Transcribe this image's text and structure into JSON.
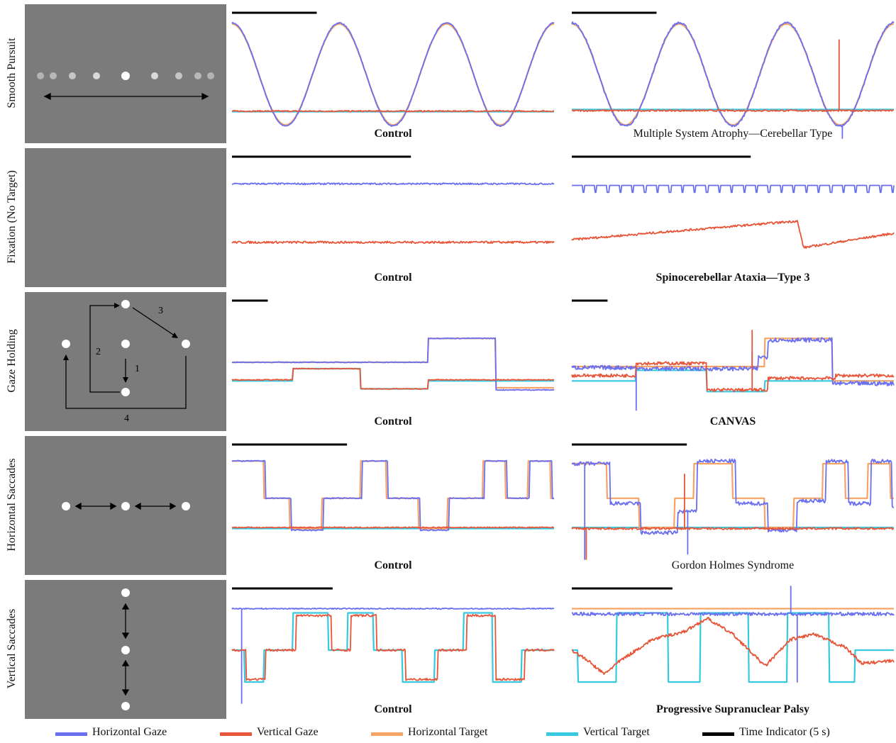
{
  "colors": {
    "horizontal_gaze": "#6a6ff0",
    "vertical_gaze": "#e8563a",
    "horizontal_target": "#f5a466",
    "vertical_target": "#36c9e0",
    "time_indicator": "#000000",
    "panel_bg": "#7b7b7b"
  },
  "rows": [
    {
      "label": "Smooth Pursuit",
      "control_caption": "Control",
      "patient_caption": "Multiple System Atrophy—Cerebellar Type",
      "schematic_labels": []
    },
    {
      "label": "Fixation (No Target)",
      "control_caption": "Control",
      "patient_caption": "Spinocerebellar Ataxia—Type 3",
      "schematic_labels": []
    },
    {
      "label": "Gaze Holding",
      "control_caption": "Control",
      "patient_caption": "CANVAS",
      "schematic_labels": [
        "1",
        "2",
        "3",
        "4"
      ]
    },
    {
      "label": "Horizontal Saccades",
      "control_caption": "Control",
      "patient_caption": "Gordon Holmes Syndrome",
      "schematic_labels": []
    },
    {
      "label": "Vertical Saccades",
      "control_caption": "Control",
      "patient_caption": "Progressive Supranuclear Palsy",
      "schematic_labels": []
    }
  ],
  "legend": [
    {
      "label": "Horizontal Gaze",
      "color_key": "horizontal_gaze"
    },
    {
      "label": "Vertical Gaze",
      "color_key": "vertical_gaze"
    },
    {
      "label": "Horizontal Target",
      "color_key": "horizontal_target"
    },
    {
      "label": "Vertical Target",
      "color_key": "vertical_target"
    },
    {
      "label": "Time Indicator (5 s)",
      "color_key": "time_indicator"
    }
  ],
  "chart_data": [
    {
      "type": "line",
      "row": "Smooth Pursuit",
      "subject": "Control",
      "time_indicator_s": 5,
      "time_span_s": 19,
      "y_range": [
        -1,
        1
      ],
      "series": [
        {
          "name": "Horizontal Target",
          "kind": "sine",
          "cycles": 3,
          "amplitude": 0.95,
          "baseline": 0
        },
        {
          "name": "Horizontal Gaze",
          "kind": "sine",
          "cycles": 3,
          "amplitude": 0.97,
          "baseline": 0,
          "noise": 0.01
        },
        {
          "name": "Vertical Target",
          "kind": "constant",
          "baseline": -0.7
        },
        {
          "name": "Vertical Gaze",
          "kind": "constant",
          "baseline": -0.69,
          "noise": 0.012
        }
      ]
    },
    {
      "type": "line",
      "row": "Smooth Pursuit",
      "subject": "Multiple System Atrophy—Cerebellar Type",
      "time_indicator_s": 5,
      "time_span_s": 19,
      "y_range": [
        -1,
        1
      ],
      "series": [
        {
          "name": "Horizontal Target",
          "kind": "sine",
          "cycles": 3,
          "amplitude": 0.95,
          "baseline": 0
        },
        {
          "name": "Horizontal Gaze",
          "kind": "sine",
          "cycles": 3,
          "amplitude": 0.97,
          "baseline": 0,
          "noise": 0.02,
          "spikes": [
            [
              0.84,
              -1.2
            ]
          ]
        },
        {
          "name": "Vertical Target",
          "kind": "constant",
          "baseline": -0.66
        },
        {
          "name": "Vertical Gaze",
          "kind": "constant",
          "baseline": -0.68,
          "noise": 0.015,
          "spikes": [
            [
              0.83,
              0.65
            ]
          ]
        }
      ]
    },
    {
      "type": "line",
      "row": "Fixation (No Target)",
      "subject": "Control",
      "time_indicator_s": 5,
      "time_span_s": 9,
      "y_range": [
        -1,
        1
      ],
      "series": [
        {
          "name": "Horizontal Gaze",
          "kind": "constant",
          "baseline": 0.65,
          "noise": 0.015
        },
        {
          "name": "Vertical Gaze",
          "kind": "constant",
          "baseline": -0.45,
          "noise": 0.02
        }
      ]
    },
    {
      "type": "line",
      "row": "Fixation (No Target)",
      "subject": "Spinocerebellar Ataxia—Type 3",
      "time_indicator_s": 5,
      "time_span_s": 9,
      "y_range": [
        -1,
        1
      ],
      "series": [
        {
          "name": "Horizontal Gaze",
          "kind": "sawtooth",
          "baseline": 0.62,
          "teeth": 26,
          "depth": 0.13
        },
        {
          "name": "Vertical Gaze",
          "kind": "drift",
          "points": [
            [
              0,
              -0.4
            ],
            [
              0.7,
              -0.05
            ],
            [
              0.72,
              -0.55
            ],
            [
              1,
              -0.28
            ]
          ],
          "noise": 0.02
        }
      ]
    },
    {
      "type": "line",
      "row": "Gaze Holding",
      "subject": "Control",
      "time_indicator_s": 5,
      "time_span_s": 45,
      "y_range": [
        -1,
        1
      ],
      "series": [
        {
          "name": "Horizontal Target",
          "kind": "steps",
          "steps": [
            [
              0,
              0
            ],
            [
              0.61,
              0.45
            ],
            [
              0.82,
              -0.48
            ]
          ]
        },
        {
          "name": "Horizontal Gaze",
          "kind": "steps",
          "steps": [
            [
              0,
              0
            ],
            [
              0.61,
              0.45
            ],
            [
              0.82,
              -0.52
            ]
          ],
          "noise": 0.008
        },
        {
          "name": "Vertical Target",
          "kind": "steps",
          "steps": [
            [
              0,
              -0.35
            ],
            [
              0.19,
              -0.12
            ],
            [
              0.4,
              -0.5
            ],
            [
              0.61,
              -0.35
            ]
          ]
        },
        {
          "name": "Vertical Gaze",
          "kind": "steps",
          "steps": [
            [
              0,
              -0.33
            ],
            [
              0.19,
              -0.12
            ],
            [
              0.4,
              -0.5
            ],
            [
              0.61,
              -0.33
            ]
          ],
          "noise": 0.008
        }
      ]
    },
    {
      "type": "line",
      "row": "Gaze Holding",
      "subject": "CANVAS",
      "time_indicator_s": 5,
      "time_span_s": 45,
      "y_range": [
        -1,
        1
      ],
      "series": [
        {
          "name": "Horizontal Target",
          "kind": "steps",
          "steps": [
            [
              0,
              -0.08
            ],
            [
              0.6,
              0.45
            ],
            [
              0.81,
              -0.35
            ]
          ]
        },
        {
          "name": "Horizontal Gaze",
          "kind": "steps",
          "steps": [
            [
              0,
              -0.1
            ],
            [
              0.2,
              -0.12
            ],
            [
              0.58,
              0.1
            ],
            [
              0.61,
              0.42
            ],
            [
              0.81,
              -0.4
            ]
          ],
          "noise": 0.04,
          "spikes": [
            [
              0.2,
              -0.9
            ],
            [
              0.56,
              0.2
            ]
          ]
        },
        {
          "name": "Vertical Target",
          "kind": "steps",
          "steps": [
            [
              0,
              -0.35
            ],
            [
              0.2,
              -0.15
            ],
            [
              0.42,
              -0.55
            ],
            [
              0.6,
              -0.35
            ]
          ]
        },
        {
          "name": "Vertical Gaze",
          "kind": "steps",
          "steps": [
            [
              0,
              -0.25
            ],
            [
              0.2,
              -0.02
            ],
            [
              0.42,
              -0.52
            ],
            [
              0.61,
              -0.3
            ],
            [
              0.82,
              -0.25
            ]
          ],
          "noise": 0.03,
          "spikes": [
            [
              0.56,
              0.6
            ]
          ]
        }
      ]
    },
    {
      "type": "line",
      "row": "Horizontal Saccades",
      "subject": "Control",
      "time_indicator_s": 5,
      "time_span_s": 14,
      "y_range": [
        -1,
        1
      ],
      "series": [
        {
          "name": "Horizontal Target",
          "kind": "steps",
          "steps": [
            [
              0,
              0.85
            ],
            [
              0.04,
              0.85
            ],
            [
              0.1,
              0.15
            ],
            [
              0.18,
              -0.42
            ],
            [
              0.28,
              0.15
            ],
            [
              0.4,
              0.85
            ],
            [
              0.48,
              0.15
            ],
            [
              0.58,
              -0.42
            ],
            [
              0.67,
              0.15
            ],
            [
              0.78,
              0.85
            ],
            [
              0.85,
              0.15
            ],
            [
              0.92,
              0.85
            ],
            [
              0.99,
              0.15
            ]
          ]
        },
        {
          "name": "Horizontal Gaze",
          "kind": "steps",
          "steps": [
            [
              0,
              0.85
            ],
            [
              0.045,
              0.85
            ],
            [
              0.105,
              0.15
            ],
            [
              0.185,
              -0.45
            ],
            [
              0.285,
              0.15
            ],
            [
              0.405,
              0.85
            ],
            [
              0.485,
              0.15
            ],
            [
              0.585,
              -0.45
            ],
            [
              0.675,
              0.15
            ],
            [
              0.785,
              0.85
            ],
            [
              0.855,
              0.15
            ],
            [
              0.925,
              0.85
            ],
            [
              0.995,
              0.15
            ]
          ],
          "noise": 0.01
        },
        {
          "name": "Vertical Target",
          "kind": "constant",
          "baseline": -0.42
        },
        {
          "name": "Vertical Gaze",
          "kind": "constant",
          "baseline": -0.4,
          "noise": 0.01
        }
      ]
    },
    {
      "type": "line",
      "row": "Horizontal Saccades",
      "subject": "Gordon Holmes Syndrome",
      "time_indicator_s": 5,
      "time_span_s": 14,
      "y_range": [
        -1,
        1
      ],
      "series": [
        {
          "name": "Horizontal Target",
          "kind": "steps",
          "steps": [
            [
              0,
              0.8
            ],
            [
              0.04,
              0.8
            ],
            [
              0.11,
              0.15
            ],
            [
              0.21,
              -0.4
            ],
            [
              0.32,
              0.15
            ],
            [
              0.38,
              0.8
            ],
            [
              0.5,
              0.15
            ],
            [
              0.6,
              -0.4
            ],
            [
              0.69,
              0.15
            ],
            [
              0.78,
              0.8
            ],
            [
              0.85,
              0.15
            ],
            [
              0.92,
              0.8
            ],
            [
              0.99,
              0.15
            ]
          ]
        },
        {
          "name": "Horizontal Gaze",
          "kind": "steps",
          "steps": [
            [
              0,
              0.8
            ],
            [
              0.045,
              0.8
            ],
            [
              0.12,
              0.05
            ],
            [
              0.215,
              -0.5
            ],
            [
              0.33,
              -0.1
            ],
            [
              0.39,
              0.85
            ],
            [
              0.51,
              0.05
            ],
            [
              0.61,
              -0.45
            ],
            [
              0.7,
              0.1
            ],
            [
              0.79,
              0.85
            ],
            [
              0.86,
              0.05
            ],
            [
              0.93,
              0.85
            ],
            [
              0.995,
              0.0
            ]
          ],
          "noise": 0.035,
          "spikes": [
            [
              0.04,
              -1.0
            ],
            [
              0.36,
              -0.9
            ]
          ]
        },
        {
          "name": "Vertical Target",
          "kind": "constant",
          "baseline": -0.4
        },
        {
          "name": "Vertical Gaze",
          "kind": "constant",
          "baseline": -0.42,
          "noise": 0.02,
          "spikes": [
            [
              0.045,
              -1.0
            ],
            [
              0.35,
              0.6
            ]
          ]
        }
      ]
    },
    {
      "type": "line",
      "row": "Vertical Saccades",
      "subject": "Control",
      "time_indicator_s": 5,
      "time_span_s": 16,
      "y_range": [
        -1,
        1
      ],
      "series": [
        {
          "name": "Horizontal Gaze",
          "kind": "constant",
          "baseline": 0.78,
          "noise": 0.01,
          "spikes": [
            [
              0.03,
              -1.0
            ]
          ]
        },
        {
          "name": "Vertical Target",
          "kind": "steps",
          "steps": [
            [
              0,
              0.0
            ],
            [
              0.04,
              -0.6
            ],
            [
              0.1,
              0.0
            ],
            [
              0.19,
              0.7
            ],
            [
              0.3,
              0.0
            ],
            [
              0.36,
              0.7
            ],
            [
              0.44,
              0.0
            ],
            [
              0.53,
              -0.6
            ],
            [
              0.63,
              0.0
            ],
            [
              0.72,
              0.7
            ],
            [
              0.81,
              -0.6
            ],
            [
              0.9,
              0.0
            ]
          ]
        },
        {
          "name": "Vertical Gaze",
          "kind": "steps",
          "steps": [
            [
              0,
              0.0
            ],
            [
              0.045,
              -0.55
            ],
            [
              0.105,
              0.0
            ],
            [
              0.2,
              0.65
            ],
            [
              0.31,
              0.0
            ],
            [
              0.37,
              0.65
            ],
            [
              0.45,
              0.0
            ],
            [
              0.54,
              -0.55
            ],
            [
              0.64,
              0.0
            ],
            [
              0.73,
              0.65
            ],
            [
              0.82,
              -0.55
            ],
            [
              0.91,
              0.0
            ]
          ],
          "noise": 0.02
        }
      ]
    },
    {
      "type": "line",
      "row": "Vertical Saccades",
      "subject": "Progressive Supranuclear Palsy",
      "time_indicator_s": 5,
      "time_span_s": 16,
      "y_range": [
        -1,
        1
      ],
      "series": [
        {
          "name": "Horizontal Target",
          "kind": "constant",
          "baseline": 0.78
        },
        {
          "name": "Horizontal Gaze",
          "kind": "constant",
          "baseline": 0.68,
          "noise": 0.03,
          "spikes": [
            [
              0.68,
              1.2
            ],
            [
              0.7,
              -0.6
            ]
          ]
        },
        {
          "name": "Vertical Target",
          "kind": "steps",
          "steps": [
            [
              0,
              0.0
            ],
            [
              0.02,
              -0.6
            ],
            [
              0.14,
              0.7
            ],
            [
              0.3,
              -0.6
            ],
            [
              0.4,
              0.7
            ],
            [
              0.55,
              -0.6
            ],
            [
              0.67,
              0.7
            ],
            [
              0.8,
              -0.6
            ],
            [
              0.88,
              0.0
            ]
          ]
        },
        {
          "name": "Vertical Gaze",
          "kind": "drift",
          "points": [
            [
              0,
              0.0
            ],
            [
              0.05,
              -0.2
            ],
            [
              0.1,
              -0.45
            ],
            [
              0.15,
              -0.2
            ],
            [
              0.25,
              0.2
            ],
            [
              0.35,
              0.35
            ],
            [
              0.42,
              0.6
            ],
            [
              0.5,
              0.3
            ],
            [
              0.6,
              -0.3
            ],
            [
              0.68,
              0.2
            ],
            [
              0.75,
              0.3
            ],
            [
              0.85,
              0.05
            ],
            [
              0.9,
              -0.25
            ],
            [
              1,
              -0.2
            ]
          ],
          "noise": 0.03
        }
      ]
    }
  ]
}
